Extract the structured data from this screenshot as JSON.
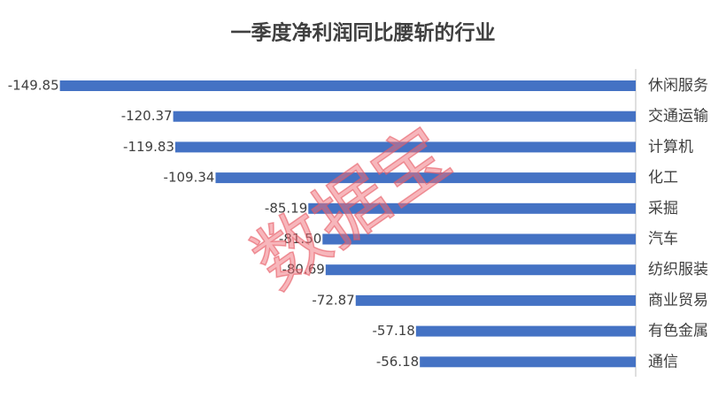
{
  "chart_data": {
    "type": "hbar",
    "title": "一季度净利润同比腰斩的行业",
    "categories": [
      "休闲服务",
      "交通运输",
      "计算机",
      "化工",
      "采掘",
      "汽车",
      "纺织服装",
      "商业贸易",
      "有色金属",
      "通信"
    ],
    "values": [
      -149.85,
      -120.37,
      -119.83,
      -109.34,
      -85.19,
      -81.5,
      -80.69,
      -72.87,
      -57.18,
      -56.18
    ],
    "value_labels": [
      "-149.85",
      "-120.37",
      "-119.83",
      "-109.34",
      "-85.19",
      "-81.50",
      "-80.69",
      "-72.87",
      "-57.18",
      "-56.18"
    ],
    "color": "#4472c4",
    "xlim": [
      -150,
      0
    ],
    "watermark": "数据宝"
  }
}
